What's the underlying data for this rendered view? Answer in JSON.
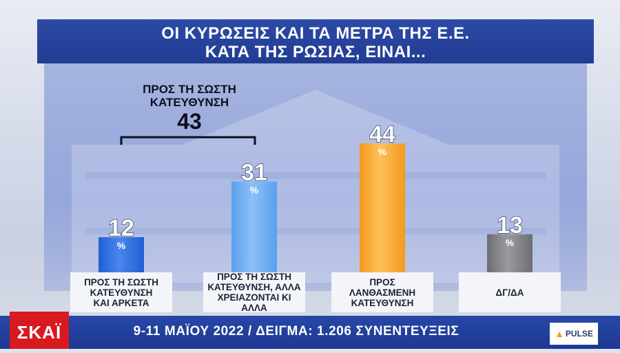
{
  "title": {
    "line1": "ΟΙ ΚΥΡΩΣΕΙΣ ΚΑΙ ΤΑ ΜΕΤΡΑ ΤΗΣ Ε.Ε.",
    "line2": "ΚΑΤΑ ΤΗΣ ΡΩΣΙΑΣ, ΕΙΝΑΙ..."
  },
  "bracket": {
    "label_line1": "ΠΡΟΣ ΤΗ ΣΩΣΤΗ",
    "label_line2": "ΚΑΤΕΥΘΥΝΣΗ",
    "value": "43"
  },
  "chart_data": {
    "type": "bar",
    "categories": [
      "ΠΡΟΣ ΤΗ ΣΩΣΤΗ ΚΑΤΕΥΘΥΝΣΗ ΚΑΙ ΑΡΚΕΤΑ",
      "ΠΡΟΣ ΤΗ ΣΩΣΤΗ ΚΑΤΕΥΘΥΝΣΗ, ΑΛΛΑ ΧΡΕΙΑΖΟΝΤΑΙ ΚΙ ΑΛΛΑ",
      "ΠΡΟΣ ΛΑΝΘΑΣΜΕΝΗ ΚΑΤΕΥΘΥΝΣΗ",
      "ΔΓ/ΔΑ"
    ],
    "category_lines": [
      [
        "ΠΡΟΣ ΤΗ ΣΩΣΤΗ",
        "ΚΑΤΕΥΘΥΝΣΗ",
        "ΚΑΙ ΑΡΚΕΤΑ"
      ],
      [
        "ΠΡΟΣ ΤΗ ΣΩΣΤΗ",
        "ΚΑΤΕΥΘΥΝΣΗ, ΑΛΛΑ",
        "ΧΡΕΙΑΖΟΝΤΑΙ ΚΙ ΑΛΛΑ"
      ],
      [
        "ΠΡΟΣ",
        "ΛΑΝΘΑΣΜΕΝΗ",
        "ΚΑΤΕΥΘΥΝΣΗ"
      ],
      [
        "ΔΓ/ΔΑ"
      ]
    ],
    "values": [
      12,
      31,
      44,
      13
    ],
    "unit": "%",
    "colors": [
      "#1f5fd6",
      "#5aa0ee",
      "#f39a1e",
      "#6e6e72"
    ],
    "highlight_colors": [
      "#4a86ec",
      "#8cc0f7",
      "#ffc05a",
      "#9a9a9f"
    ],
    "ylim": [
      0,
      50
    ],
    "group_total": {
      "label": "ΠΡΟΣ ΤΗ ΣΩΣΤΗ ΚΑΤΕΥΘΥΝΣΗ",
      "value": 43,
      "covers": [
        0,
        1
      ]
    }
  },
  "footer": {
    "text": "9-11 ΜΑΪΟΥ 2022 / ΔΕΙΓΜΑ: 1.206 ΣΥΝΕΝΤΕΥΞΕΙΣ",
    "channel_logo": "ΣΚΑΪ",
    "pollster_logo": "PULSE"
  }
}
